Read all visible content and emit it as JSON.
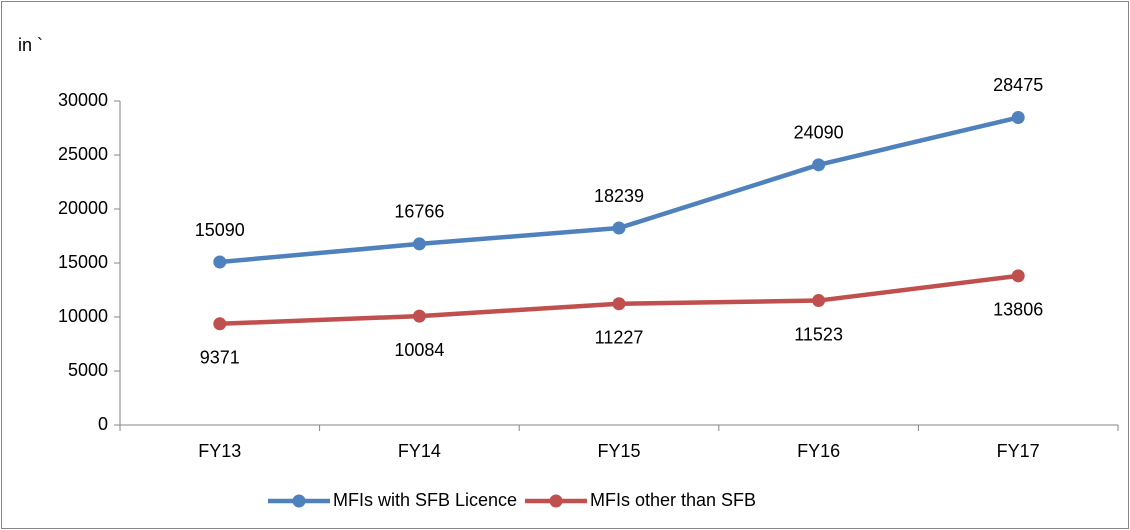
{
  "chart_data": {
    "type": "line",
    "y_label": "in `",
    "categories": [
      "FY13",
      "FY14",
      "FY15",
      "FY16",
      "FY17"
    ],
    "series": [
      {
        "name": "MFIs with SFB Licence",
        "color": "#4f81bd",
        "values": [
          15090,
          16766,
          18239,
          24090,
          28475
        ]
      },
      {
        "name": "MFIs other than SFB",
        "color": "#c0504d",
        "values": [
          9371,
          10084,
          11227,
          11523,
          13806
        ]
      }
    ],
    "ylim": [
      0,
      30000
    ],
    "yticks": [
      0,
      5000,
      10000,
      15000,
      20000,
      25000,
      30000
    ],
    "grid": false,
    "legend": "bottom"
  }
}
